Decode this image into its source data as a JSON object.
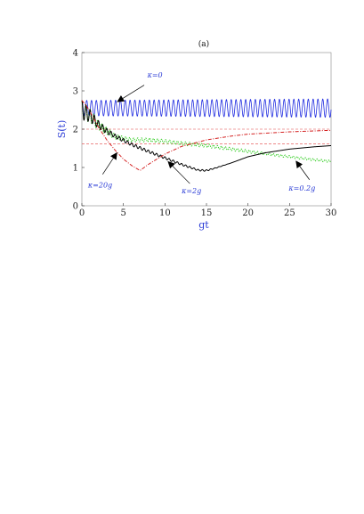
{
  "chart_data": {
    "type": "line",
    "panel_label": "(a)",
    "xlabel": "gt",
    "ylabel": "S(t)",
    "xlim": [
      0,
      30
    ],
    "ylim": [
      0,
      4
    ],
    "x_ticks": [
      0,
      5,
      10,
      15,
      20,
      25,
      30
    ],
    "y_ticks": [
      0,
      1,
      2,
      3,
      4
    ],
    "reference_lines": [
      {
        "y": 2.0,
        "color": "#e04040",
        "style": "dashed"
      },
      {
        "y": 1.62,
        "color": "#e04040",
        "style": "dashed"
      }
    ],
    "series": [
      {
        "key": "k0",
        "color": "#1f2be0",
        "style": "solid",
        "osc_period": 0.58,
        "x": [
          0,
          30
        ],
        "y": [
          2.55,
          2.55
        ],
        "amp": [
          0.2,
          0.24
        ]
      },
      {
        "key": "k02g",
        "color": "#2ecc1e",
        "style": "dotted",
        "osc_period": 0.48,
        "x": [
          0,
          1,
          2,
          4,
          6,
          8,
          10,
          12,
          15,
          18,
          20,
          22,
          25,
          28,
          30
        ],
        "y": [
          2.5,
          2.35,
          2.1,
          1.8,
          1.72,
          1.72,
          1.68,
          1.63,
          1.57,
          1.48,
          1.42,
          1.36,
          1.28,
          1.2,
          1.16
        ],
        "amp": [
          0.22,
          0.18,
          0.12,
          0.06,
          0.05,
          0.05,
          0.05,
          0.05,
          0.045,
          0.04,
          0.04,
          0.035,
          0.03,
          0.03,
          0.03
        ]
      },
      {
        "key": "k2g",
        "color": "#000000",
        "style": "solid",
        "osc_period": 0.5,
        "x": [
          0,
          1,
          2,
          3,
          4,
          6,
          8,
          10,
          12,
          14,
          15,
          16,
          18,
          20,
          22,
          25,
          28,
          30
        ],
        "y": [
          2.5,
          2.35,
          2.12,
          1.95,
          1.82,
          1.6,
          1.42,
          1.25,
          1.08,
          0.93,
          0.92,
          0.98,
          1.12,
          1.28,
          1.38,
          1.48,
          1.54,
          1.57
        ],
        "amp": [
          0.25,
          0.16,
          0.1,
          0.07,
          0.05,
          0.04,
          0.035,
          0.03,
          0.025,
          0.02,
          0.02,
          0.01,
          0,
          0,
          0,
          0,
          0,
          0
        ]
      },
      {
        "key": "k20g",
        "color": "#d42020",
        "style": "dashdot",
        "osc_period": 0,
        "x": [
          0,
          0.5,
          1,
          2,
          3,
          4,
          5,
          6,
          7,
          8,
          10,
          12,
          15,
          18,
          20,
          25,
          30
        ],
        "y": [
          2.75,
          2.62,
          2.45,
          2.05,
          1.72,
          1.45,
          1.22,
          1.05,
          0.92,
          1.08,
          1.35,
          1.55,
          1.72,
          1.82,
          1.87,
          1.93,
          1.97
        ],
        "amp": [
          0,
          0,
          0,
          0,
          0,
          0,
          0,
          0,
          0,
          0,
          0,
          0,
          0,
          0,
          0,
          0,
          0
        ]
      }
    ],
    "annotations": [
      {
        "label": "κ=0",
        "text_x": 8.8,
        "text_y": 3.35,
        "arrow_from": [
          7.5,
          3.15
        ],
        "arrow_to": [
          4.3,
          2.72
        ]
      },
      {
        "label": "κ=20g",
        "text_x": 2.2,
        "text_y": 0.48,
        "arrow_from": [
          2.5,
          0.82
        ],
        "arrow_to": [
          4.2,
          1.38
        ]
      },
      {
        "label": "κ=2g",
        "text_x": 13.2,
        "text_y": 0.32,
        "arrow_from": [
          13.0,
          0.58
        ],
        "arrow_to": [
          10.4,
          1.15
        ]
      },
      {
        "label": "κ=0.2g",
        "text_x": 26.5,
        "text_y": 0.4,
        "arrow_from": [
          27.4,
          0.68
        ],
        "arrow_to": [
          25.8,
          1.16
        ]
      }
    ]
  }
}
